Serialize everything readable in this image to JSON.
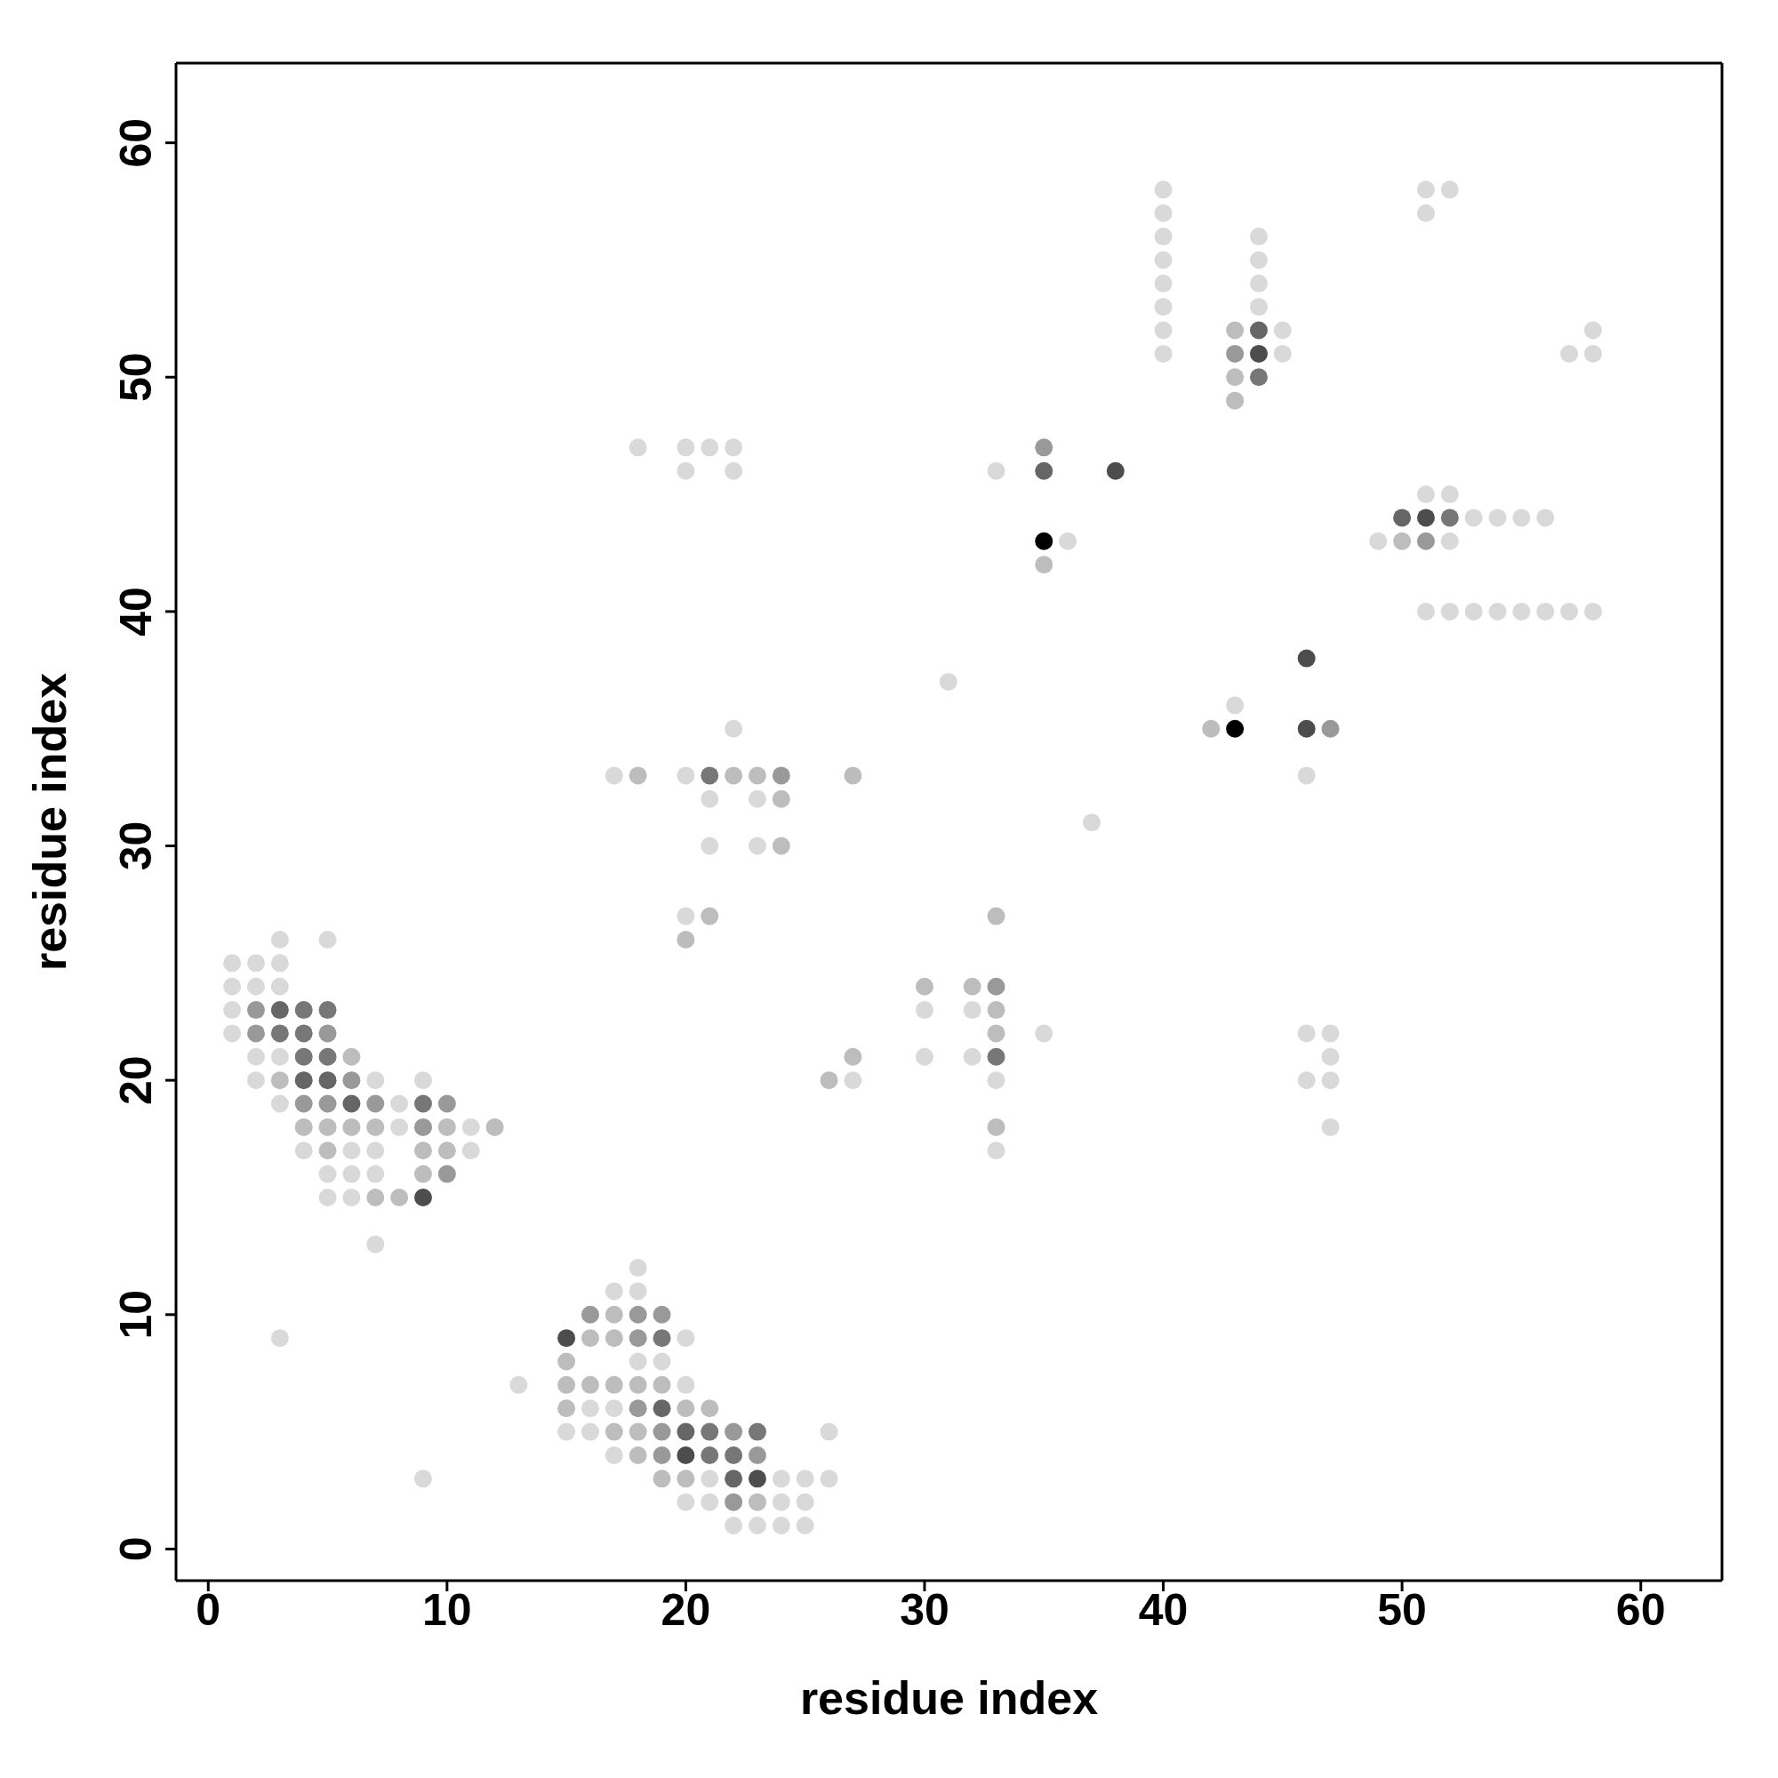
{
  "chart_data": {
    "type": "scatter",
    "xlabel": "residue index",
    "ylabel": "residue index",
    "xlim": [
      -1.35,
      63.4
    ],
    "ylim": [
      -1.35,
      63.4
    ],
    "xticks": [
      0,
      10,
      20,
      30,
      40,
      50,
      60
    ],
    "yticks": [
      0,
      10,
      20,
      30,
      40,
      50,
      60
    ],
    "marker": "circle",
    "series": [
      {
        "color": "#d9d9d9",
        "x": [
          1,
          1,
          1,
          1,
          2,
          2,
          2,
          2,
          3,
          3,
          3,
          3,
          3,
          3,
          4,
          5,
          5,
          5,
          6,
          6,
          6,
          7,
          7,
          7,
          7,
          8,
          8,
          9,
          9,
          11,
          11,
          13,
          15,
          16,
          16,
          17,
          17,
          17,
          17,
          18,
          18,
          18,
          18,
          19,
          20,
          20,
          20,
          20,
          20,
          20,
          20,
          21,
          21,
          21,
          21,
          21,
          22,
          22,
          22,
          22,
          23,
          23,
          23,
          24,
          24,
          24,
          25,
          25,
          25,
          26,
          26,
          27,
          30,
          30,
          31,
          32,
          32,
          33,
          33,
          33,
          35,
          36,
          37,
          40,
          40,
          40,
          40,
          40,
          40,
          40,
          40,
          43,
          44,
          44,
          44,
          44,
          45,
          45,
          46,
          46,
          46,
          47,
          47,
          47,
          47,
          49,
          51,
          51,
          51,
          51,
          52,
          52,
          52,
          52,
          53,
          53,
          54,
          54,
          55,
          55,
          56,
          56,
          57,
          57,
          58,
          58,
          58
        ],
        "values": [
          25,
          24,
          23,
          22,
          25,
          24,
          21,
          20,
          26,
          25,
          24,
          21,
          19,
          9,
          17,
          26,
          16,
          15,
          17,
          16,
          15,
          20,
          17,
          16,
          13,
          19,
          18,
          20,
          3,
          18,
          17,
          7,
          5,
          6,
          5,
          33,
          11,
          6,
          4,
          47,
          12,
          11,
          8,
          8,
          47,
          46,
          33,
          27,
          9,
          7,
          2,
          47,
          32,
          30,
          3,
          2,
          47,
          46,
          35,
          1,
          32,
          30,
          1,
          3,
          2,
          1,
          3,
          2,
          1,
          5,
          3,
          20,
          23,
          21,
          37,
          23,
          21,
          46,
          20,
          17,
          22,
          43,
          31,
          58,
          57,
          56,
          55,
          54,
          53,
          52,
          51,
          36,
          56,
          55,
          54,
          53,
          52,
          51,
          33,
          22,
          20,
          22,
          21,
          20,
          18,
          43,
          58,
          57,
          45,
          40,
          58,
          45,
          43,
          40,
          44,
          40,
          44,
          40,
          44,
          40,
          44,
          40,
          51,
          40,
          52,
          51,
          40
        ]
      },
      {
        "color": "#bdbdbd",
        "x": [
          3,
          4,
          5,
          5,
          6,
          6,
          7,
          7,
          8,
          9,
          9,
          10,
          10,
          12,
          15,
          15,
          15,
          16,
          16,
          17,
          17,
          17,
          17,
          18,
          18,
          18,
          18,
          19,
          19,
          20,
          20,
          20,
          21,
          21,
          22,
          23,
          23,
          24,
          24,
          26,
          27,
          27,
          30,
          32,
          33,
          33,
          33,
          33,
          35,
          42,
          43,
          43,
          43,
          50
        ],
        "values": [
          20,
          18,
          18,
          17,
          21,
          18,
          18,
          15,
          15,
          17,
          16,
          18,
          17,
          18,
          8,
          7,
          6,
          9,
          7,
          10,
          9,
          7,
          5,
          33,
          7,
          5,
          4,
          7,
          3,
          26,
          6,
          3,
          27,
          6,
          33,
          33,
          2,
          32,
          30,
          20,
          33,
          21,
          24,
          24,
          27,
          23,
          22,
          18,
          42,
          35,
          52,
          50,
          49,
          43
        ]
      },
      {
        "color": "#999999",
        "x": [
          2,
          2,
          4,
          5,
          5,
          6,
          7,
          9,
          10,
          10,
          16,
          18,
          18,
          18,
          19,
          19,
          19,
          22,
          22,
          23,
          24,
          33,
          35,
          43,
          47,
          51
        ],
        "values": [
          23,
          22,
          19,
          22,
          19,
          20,
          19,
          18,
          19,
          16,
          10,
          10,
          9,
          6,
          10,
          5,
          4,
          5,
          2,
          4,
          33,
          24,
          47,
          51,
          35,
          43
        ]
      },
      {
        "color": "#777777",
        "x": [
          3,
          4,
          4,
          4,
          5,
          5,
          9,
          19,
          21,
          21,
          21,
          22,
          23,
          33,
          44,
          52
        ],
        "values": [
          22,
          23,
          22,
          21,
          23,
          21,
          19,
          9,
          33,
          5,
          4,
          4,
          5,
          21,
          50,
          44
        ]
      },
      {
        "color": "#666666",
        "x": [
          3,
          4,
          5,
          6,
          19,
          20,
          22,
          35,
          44,
          50
        ],
        "values": [
          23,
          20,
          20,
          19,
          6,
          5,
          3,
          46,
          52,
          44
        ]
      },
      {
        "color": "#4d4d4d",
        "x": [
          9,
          15,
          20,
          23,
          38,
          44,
          46,
          46,
          51
        ],
        "values": [
          15,
          9,
          4,
          3,
          46,
          51,
          38,
          35,
          44
        ]
      },
      {
        "color": "#000000",
        "x": [
          35,
          43
        ],
        "values": [
          43,
          35
        ]
      }
    ]
  }
}
